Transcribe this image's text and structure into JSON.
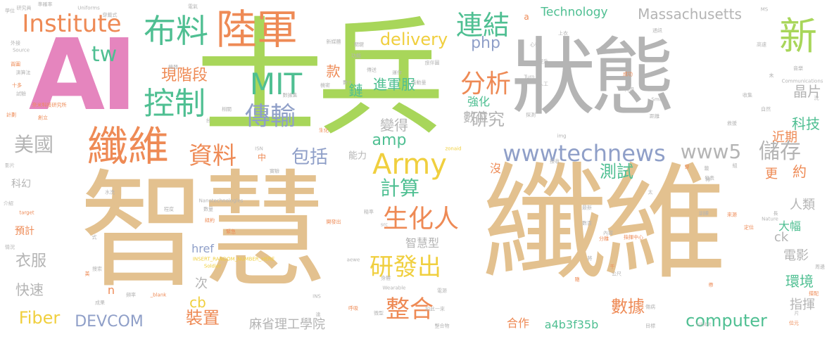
{
  "palette": {
    "tan": "#e3c18f",
    "green": "#a8d65a",
    "gray": "#b4b4b4",
    "orange": "#ee8a55",
    "teal": "#4fbf92",
    "slate": "#8f9fc8",
    "pink": "#e585be",
    "yellow": "#f0cf3e"
  },
  "words": [
    {
      "text": "智慧",
      "color": "tan"
    },
    {
      "text": "纖維",
      "color": "tan"
    },
    {
      "text": "士兵",
      "color": "green"
    },
    {
      "text": "狀態",
      "color": "gray"
    },
    {
      "text": "AI",
      "color": "pink"
    },
    {
      "text": "纖維",
      "color": "orange"
    },
    {
      "text": "陸軍",
      "color": "orange"
    },
    {
      "text": "布料",
      "color": "teal"
    },
    {
      "text": "新",
      "color": "green"
    },
    {
      "text": "Institute",
      "color": "orange"
    },
    {
      "text": "tw",
      "color": "teal"
    },
    {
      "text": "MIT",
      "color": "teal"
    },
    {
      "text": "控制",
      "color": "teal"
    },
    {
      "text": "傳輸",
      "color": "slate"
    },
    {
      "text": "連結",
      "color": "teal"
    },
    {
      "text": "分析",
      "color": "orange"
    },
    {
      "text": "Army",
      "color": "yellow"
    },
    {
      "text": "wwwtechnews",
      "color": "slate"
    },
    {
      "text": "www5",
      "color": "gray"
    },
    {
      "text": "儲存",
      "color": "gray"
    },
    {
      "text": "資料",
      "color": "orange"
    },
    {
      "text": "生化人",
      "color": "orange"
    },
    {
      "text": "研發出",
      "color": "yellow"
    },
    {
      "text": "整合",
      "color": "orange"
    },
    {
      "text": "美國",
      "color": "gray"
    },
    {
      "text": "delivery",
      "color": "yellow"
    },
    {
      "text": "Technology",
      "color": "teal"
    },
    {
      "text": "Massachusetts",
      "color": "gray"
    },
    {
      "text": "php",
      "color": "slate"
    },
    {
      "text": "amp",
      "color": "teal"
    },
    {
      "text": "計算",
      "color": "teal"
    },
    {
      "text": "包括",
      "color": "slate"
    },
    {
      "text": "現階段",
      "color": "orange"
    },
    {
      "text": "進軍服",
      "color": "teal"
    },
    {
      "text": "研究",
      "color": "gray"
    },
    {
      "text": "晶片",
      "color": "gray"
    },
    {
      "text": "科技",
      "color": "teal"
    },
    {
      "text": "近期",
      "color": "orange"
    },
    {
      "text": "變得",
      "color": "gray"
    },
    {
      "text": "測試",
      "color": "teal"
    },
    {
      "text": "約",
      "color": "orange"
    },
    {
      "text": "更",
      "color": "orange"
    },
    {
      "text": "數位",
      "color": "gray"
    },
    {
      "text": "強化",
      "color": "teal"
    },
    {
      "text": "款",
      "color": "orange"
    },
    {
      "text": "鏈",
      "color": "teal"
    },
    {
      "text": "Fiber",
      "color": "yellow"
    },
    {
      "text": "DEVCOM",
      "color": "slate"
    },
    {
      "text": "裝置",
      "color": "orange"
    },
    {
      "text": "麻省理工學院",
      "color": "gray"
    },
    {
      "text": "computer",
      "color": "teal"
    },
    {
      "text": "a4b3f35b",
      "color": "teal"
    },
    {
      "text": "合作",
      "color": "orange"
    },
    {
      "text": "數據",
      "color": "orange"
    },
    {
      "text": "指揮",
      "color": "gray"
    },
    {
      "text": "環境",
      "color": "teal"
    },
    {
      "text": "電影",
      "color": "gray"
    },
    {
      "text": "大幅",
      "color": "teal"
    },
    {
      "text": "人類",
      "color": "gray"
    },
    {
      "text": "ck",
      "color": "gray"
    },
    {
      "text": "智慧型",
      "color": "gray"
    },
    {
      "text": "衣服",
      "color": "gray"
    },
    {
      "text": "快速",
      "color": "gray"
    },
    {
      "text": "cb",
      "color": "yellow"
    },
    {
      "text": "次",
      "color": "gray"
    },
    {
      "text": "n",
      "color": "orange"
    },
    {
      "text": "href",
      "color": "slate"
    },
    {
      "text": "預計",
      "color": "orange"
    },
    {
      "text": "科幻",
      "color": "gray"
    },
    {
      "text": "能力",
      "color": "gray"
    },
    {
      "text": "中",
      "color": "orange"
    },
    {
      "text": "沒",
      "color": "orange"
    },
    {
      "text": "a",
      "color": "orange"
    },
    {
      "text": "Uniforms",
      "color": "gray"
    },
    {
      "text": "穿戴式",
      "color": "gray"
    },
    {
      "text": "Source",
      "color": "gray"
    },
    {
      "text": "外接",
      "color": "gray"
    },
    {
      "text": "首圖",
      "color": "orange"
    },
    {
      "text": "演算法",
      "color": "gray"
    },
    {
      "text": "奈米科技研究所",
      "color": "orange"
    },
    {
      "text": "創立",
      "color": "orange"
    },
    {
      "text": "準確率",
      "color": "gray"
    },
    {
      "text": "學位",
      "color": "gray"
    },
    {
      "text": "MS",
      "color": "gray"
    },
    {
      "text": "高速",
      "color": "gray"
    },
    {
      "text": "Communications",
      "color": "gray"
    },
    {
      "text": "音樂",
      "color": "gray"
    },
    {
      "text": "成功",
      "color": "orange"
    },
    {
      "text": "Turn",
      "color": "gray"
    },
    {
      "text": "人工",
      "color": "gray"
    },
    {
      "text": "心律",
      "color": "gray"
    },
    {
      "text": "新媒體",
      "color": "gray"
    },
    {
      "text": "旅伴圖",
      "color": "gray"
    },
    {
      "text": "運作",
      "color": "gray"
    },
    {
      "text": "活動量",
      "color": "gray"
    },
    {
      "text": "Smart",
      "color": "gray"
    },
    {
      "text": "生化",
      "color": "orange"
    },
    {
      "text": "img",
      "color": "gray"
    },
    {
      "text": "ISN",
      "color": "gray"
    },
    {
      "text": "INSERT_RANDOM_NUMBER_HERE",
      "color": "yellow"
    },
    {
      "text": "Nanotechnologies",
      "color": "gray"
    },
    {
      "text": "Soldier",
      "color": "yellow"
    },
    {
      "text": "Wearable",
      "color": "gray"
    },
    {
      "text": "_blank",
      "color": "orange"
    },
    {
      "text": "INS",
      "color": "gray"
    },
    {
      "text": "kilobit",
      "color": "gray"
    },
    {
      "text": "Nature",
      "color": "gray"
    },
    {
      "text": "target",
      "color": "orange"
    },
    {
      "text": "影片",
      "color": "gray"
    },
    {
      "text": "介紹",
      "color": "gray"
    },
    {
      "text": "水洗",
      "color": "gray"
    },
    {
      "text": "程度",
      "color": "gray"
    },
    {
      "text": "發表",
      "color": "gray"
    },
    {
      "text": "數百",
      "color": "gray"
    },
    {
      "text": "指揮中心",
      "color": "orange"
    },
    {
      "text": "公尺",
      "color": "gray"
    },
    {
      "text": "電源",
      "color": "gray"
    },
    {
      "text": "微型",
      "color": "gray"
    },
    {
      "text": "整合物",
      "color": "gray"
    },
    {
      "text": "呼吸",
      "color": "orange"
    },
    {
      "text": "傷病",
      "color": "gray"
    },
    {
      "text": "位元",
      "color": "orange"
    },
    {
      "text": "搭配",
      "color": "orange"
    },
    {
      "text": "周邊",
      "color": "gray"
    },
    {
      "text": "目標",
      "color": "gray"
    },
    {
      "text": "自然",
      "color": "gray"
    },
    {
      "text": "救援",
      "color": "gray"
    },
    {
      "text": "探測",
      "color": "gray"
    },
    {
      "text": "搜索",
      "color": "gray"
    },
    {
      "text": "緊急",
      "color": "orange"
    },
    {
      "text": "情況",
      "color": "gray"
    },
    {
      "text": "成果",
      "color": "gray"
    },
    {
      "text": "頻率",
      "color": "gray"
    },
    {
      "text": "如此一來",
      "color": "gray"
    },
    {
      "text": "將",
      "color": "gray"
    },
    {
      "text": "千",
      "color": "orange"
    },
    {
      "text": "長",
      "color": "gray"
    },
    {
      "text": "太",
      "color": "gray"
    },
    {
      "text": "籤",
      "color": "gray"
    },
    {
      "text": "洗",
      "color": "gray"
    },
    {
      "text": "未",
      "color": "gray"
    },
    {
      "text": "研究員",
      "color": "gray"
    },
    {
      "text": "十多",
      "color": "orange"
    },
    {
      "text": "試驗",
      "color": "gray"
    },
    {
      "text": "計劃",
      "color": "orange"
    },
    {
      "text": "傳送",
      "color": "gray"
    },
    {
      "text": "機密",
      "color": "gray"
    },
    {
      "text": "數十",
      "color": "gray"
    },
    {
      "text": "身體",
      "color": "gray"
    },
    {
      "text": "實驗",
      "color": "gray"
    },
    {
      "text": "接收",
      "color": "gray"
    },
    {
      "text": "上衣",
      "color": "gray"
    },
    {
      "text": "通訊",
      "color": "gray"
    },
    {
      "text": "收集",
      "color": "gray"
    },
    {
      "text": "訓練",
      "color": "gray"
    },
    {
      "text": "最新",
      "color": "gray"
    },
    {
      "text": "定位",
      "color": "orange"
    },
    {
      "text": "來源",
      "color": "orange"
    },
    {
      "text": "內容",
      "color": "gray"
    },
    {
      "text": "分離",
      "color": "orange"
    },
    {
      "text": "src",
      "color": "gray"
    },
    {
      "text": "aewe",
      "color": "gray"
    },
    {
      "text": "zonaid",
      "color": "yellow"
    },
    {
      "text": "科學",
      "color": "gray"
    },
    {
      "text": "距離",
      "color": "gray"
    },
    {
      "text": "關鍵",
      "color": "gray"
    },
    {
      "text": "提升",
      "color": "gray"
    },
    {
      "text": "數量",
      "color": "gray"
    },
    {
      "text": "開發出",
      "color": "orange"
    },
    {
      "text": "紐約",
      "color": "orange"
    },
    {
      "text": "精準",
      "color": "gray"
    },
    {
      "text": "數據集",
      "color": "gray"
    },
    {
      "text": "功能",
      "color": "gray"
    },
    {
      "text": "相關",
      "color": "gray"
    },
    {
      "text": "台",
      "color": "gray"
    },
    {
      "text": "電氣",
      "color": "gray"
    },
    {
      "text": "帶",
      "color": "orange"
    },
    {
      "text": "穿",
      "color": "orange"
    },
    {
      "text": "隊",
      "color": "gray"
    },
    {
      "text": "組",
      "color": "gray"
    },
    {
      "text": "機器",
      "color": "gray"
    },
    {
      "text": "美",
      "color": "orange"
    },
    {
      "text": "式",
      "color": "gray"
    },
    {
      "text": "隨",
      "color": "orange"
    },
    {
      "text": "達",
      "color": "gray"
    },
    {
      "text": "片",
      "color": "gray"
    },
    {
      "text": "縫合",
      "color": "gray"
    },
    {
      "text": "萬",
      "color": "gray"
    }
  ]
}
